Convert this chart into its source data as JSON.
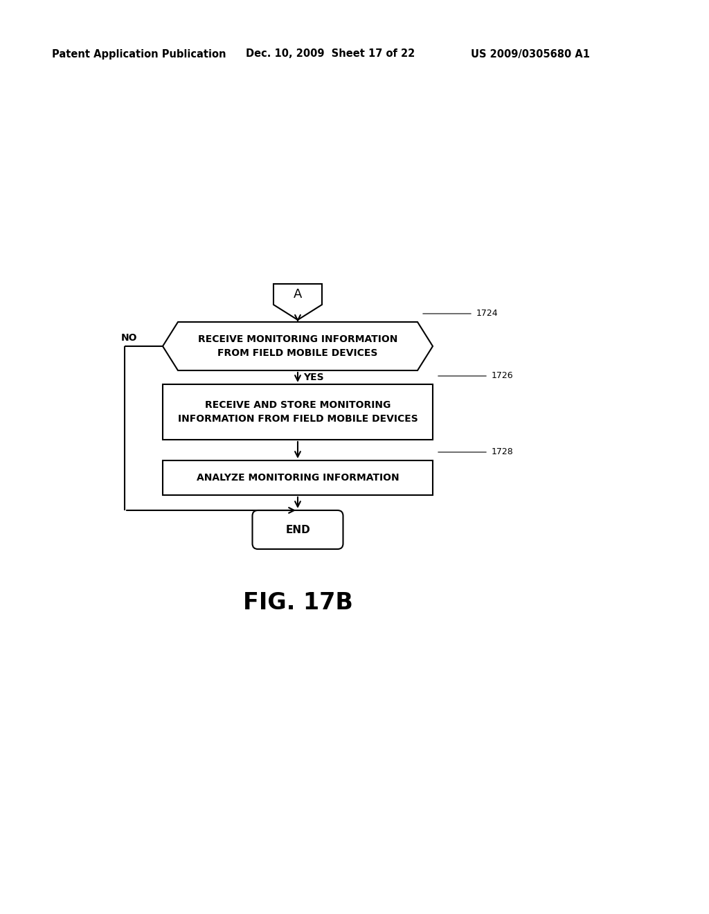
{
  "bg_color": "#ffffff",
  "header_left": "Patent Application Publication",
  "header_mid": "Dec. 10, 2009  Sheet 17 of 22",
  "header_right": "US 2009/0305680 A1",
  "fig_label": "FIG. 17B",
  "connector_label": "A",
  "box1724_label": "RECEIVE MONITORING INFORMATION\nFROM FIELD MOBILE DEVICES",
  "box1724_ref": "1724",
  "box1726_label": "RECEIVE AND STORE MONITORING\nINFORMATION FROM FIELD MOBILE DEVICES",
  "box1726_ref": "1726",
  "box1728_label": "ANALYZE MONITORING INFORMATION",
  "box1728_ref": "1728",
  "end_label": "END",
  "no_label": "NO",
  "yes_label": "YES",
  "line_color": "#000000",
  "text_color": "#000000"
}
